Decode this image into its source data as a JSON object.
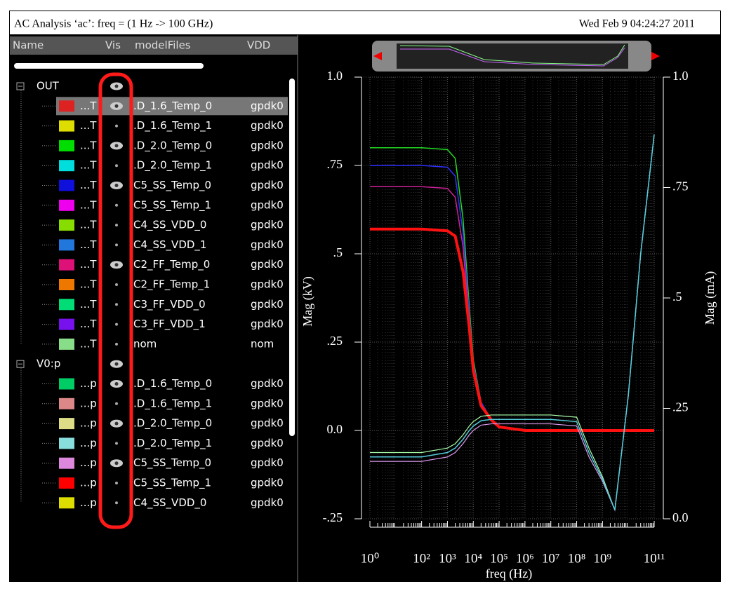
{
  "header": {
    "title": "AC Analysis ‘ac’: freq = (1 Hz -> 100 GHz)",
    "date": "Wed Feb 9 04:24:27 2011"
  },
  "columns": [
    "Name",
    "Vis",
    "modelFiles",
    "VDD"
  ],
  "tree": [
    {
      "label": "OUT",
      "visible": true,
      "rows": [
        {
          "name": "...T",
          "color": "#dd2222",
          "visible": true,
          "model": ".D_1.6_Temp_0",
          "vdd": "gpdk0",
          "selected": true
        },
        {
          "name": "...T",
          "color": "#dddd00",
          "visible": false,
          "model": ".D_1.6_Temp_1",
          "vdd": "gpdk0"
        },
        {
          "name": "...T",
          "color": "#00dd00",
          "visible": true,
          "model": ".D_2.0_Temp_0",
          "vdd": "gpdk0"
        },
        {
          "name": "...T",
          "color": "#00dddd",
          "visible": false,
          "model": ".D_2.0_Temp_1",
          "vdd": "gpdk0"
        },
        {
          "name": "...T",
          "color": "#1010dd",
          "visible": true,
          "model": "C5_SS_Temp_0",
          "vdd": "gpdk0"
        },
        {
          "name": "...T",
          "color": "#ee00ee",
          "visible": false,
          "model": "C5_SS_Temp_1",
          "vdd": "gpdk0"
        },
        {
          "name": "...T",
          "color": "#88dd00",
          "visible": false,
          "model": "C4_SS_VDD_0",
          "vdd": "gpdk0"
        },
        {
          "name": "...T",
          "color": "#2277dd",
          "visible": false,
          "model": "C4_SS_VDD_1",
          "vdd": "gpdk0"
        },
        {
          "name": "...T",
          "color": "#dd1177",
          "visible": true,
          "model": "C2_FF_Temp_0",
          "vdd": "gpdk0"
        },
        {
          "name": "...T",
          "color": "#ee7700",
          "visible": false,
          "model": "C2_FF_Temp_1",
          "vdd": "gpdk0"
        },
        {
          "name": "...T",
          "color": "#00dd77",
          "visible": false,
          "model": "C3_FF_VDD_0",
          "vdd": "gpdk0"
        },
        {
          "name": "...T",
          "color": "#7711ee",
          "visible": false,
          "model": "C3_FF_VDD_1",
          "vdd": "gpdk0"
        },
        {
          "name": "...T",
          "color": "#88dd88",
          "visible": false,
          "model": "nom",
          "vdd": "nom"
        }
      ]
    },
    {
      "label": "V0:p",
      "visible": true,
      "rows": [
        {
          "name": "...p",
          "color": "#00cc66",
          "visible": true,
          "model": ".D_1.6_Temp_0",
          "vdd": "gpdk0"
        },
        {
          "name": "...p",
          "color": "#dd8888",
          "visible": false,
          "model": ".D_1.6_Temp_1",
          "vdd": "gpdk0"
        },
        {
          "name": "...p",
          "color": "#dddd88",
          "visible": true,
          "model": ".D_2.0_Temp_0",
          "vdd": "gpdk0"
        },
        {
          "name": "...p",
          "color": "#88dddd",
          "visible": false,
          "model": ".D_2.0_Temp_1",
          "vdd": "gpdk0"
        },
        {
          "name": "...p",
          "color": "#dd88dd",
          "visible": true,
          "model": "C5_SS_Temp_0",
          "vdd": "gpdk0"
        },
        {
          "name": "...p",
          "color": "#ff0000",
          "visible": false,
          "model": "C5_SS_Temp_1",
          "vdd": "gpdk0"
        },
        {
          "name": "...p",
          "color": "#dddd00",
          "visible": false,
          "model": "C4_SS_VDD_0",
          "vdd": "gpdk0"
        }
      ]
    }
  ],
  "chart_data": {
    "type": "line",
    "xlabel": "freq (Hz)",
    "ylabel": "Mag (kV)",
    "y2label": "Mag (mA)",
    "log_x": true,
    "grid": true,
    "x": [
      1,
      10,
      100,
      1000,
      2000,
      4000,
      7000,
      10000,
      20000,
      50000,
      100000,
      1000000,
      10000000,
      100000000,
      300000000,
      1000000000,
      3000000000,
      10000000000,
      30000000000,
      100000000000
    ],
    "xlim": [
      1,
      100000000000
    ],
    "xticks": [
      {
        "value": 1,
        "label": "10⁰"
      },
      {
        "value": 100,
        "label": "10²"
      },
      {
        "value": 1000,
        "label": "10³"
      },
      {
        "value": 10000,
        "label": "10⁴"
      },
      {
        "value": 100000,
        "label": "10⁵"
      },
      {
        "value": 1000000,
        "label": "10⁶"
      },
      {
        "value": 10000000,
        "label": "10⁷"
      },
      {
        "value": 100000000,
        "label": "10⁸"
      },
      {
        "value": 1000000000,
        "label": "10⁹"
      },
      {
        "value": 100000000000,
        "label": "10¹¹"
      }
    ],
    "ylim": [
      -0.25,
      1.0
    ],
    "yticks": [
      {
        "value": -0.25,
        "label": "-.25"
      },
      {
        "value": 0,
        "label": "0.0"
      },
      {
        "value": 0.25,
        "label": ".25"
      },
      {
        "value": 0.5,
        "label": ".5"
      },
      {
        "value": 0.75,
        "label": ".75"
      },
      {
        "value": 1.0,
        "label": "1.0"
      }
    ],
    "y2lim": [
      0,
      1.0
    ],
    "y2ticks": [
      {
        "value": 0,
        "label": "0.0"
      },
      {
        "value": 0.25,
        "label": ".25"
      },
      {
        "value": 0.5,
        "label": ".5"
      },
      {
        "value": 0.75,
        "label": ".75"
      },
      {
        "value": 1.0,
        "label": "1.0"
      }
    ],
    "series": [
      {
        "color": "#22dd22",
        "width": 1.5,
        "values": [
          0.8,
          0.8,
          0.8,
          0.795,
          0.77,
          0.6,
          0.35,
          0.2,
          0.08,
          0.03,
          0.01,
          0,
          0,
          0,
          0,
          0,
          0,
          0,
          0,
          0
        ]
      },
      {
        "color": "#3030ff",
        "width": 1.5,
        "values": [
          0.75,
          0.75,
          0.75,
          0.745,
          0.72,
          0.56,
          0.33,
          0.19,
          0.08,
          0.03,
          0.01,
          0,
          0,
          0,
          0,
          0,
          0,
          0,
          0,
          0
        ]
      },
      {
        "color": "#cc2299",
        "width": 1.5,
        "values": [
          0.69,
          0.69,
          0.69,
          0.685,
          0.66,
          0.52,
          0.31,
          0.18,
          0.07,
          0.03,
          0.01,
          0,
          0,
          0,
          0,
          0,
          0,
          0,
          0,
          0
        ]
      },
      {
        "color": "#ff1111",
        "width": 4,
        "values": [
          0.57,
          0.57,
          0.57,
          0.565,
          0.55,
          0.45,
          0.29,
          0.17,
          0.07,
          0.03,
          0.01,
          0,
          0,
          0,
          0,
          0,
          0,
          0,
          0,
          0
        ]
      },
      {
        "color": "#aaffaa",
        "width": 1.2,
        "axis": "y2",
        "values": [
          0.15,
          0.15,
          0.15,
          0.16,
          0.17,
          0.19,
          0.21,
          0.22,
          0.232,
          0.235,
          0.235,
          0.235,
          0.235,
          0.23,
          0.16,
          0.095,
          0.02,
          0.28,
          0.6,
          0.87
        ]
      },
      {
        "color": "#dd99ee",
        "width": 1.2,
        "axis": "y2",
        "values": [
          0.13,
          0.13,
          0.13,
          0.14,
          0.15,
          0.17,
          0.19,
          0.2,
          0.212,
          0.215,
          0.215,
          0.215,
          0.215,
          0.21,
          0.14,
          0.085,
          0.02,
          0.28,
          0.6,
          0.87
        ]
      },
      {
        "color": "#55ccdd",
        "width": 1.5,
        "axis": "y2",
        "values": [
          0.14,
          0.14,
          0.14,
          0.15,
          0.16,
          0.18,
          0.2,
          0.21,
          0.222,
          0.225,
          0.225,
          0.225,
          0.225,
          0.22,
          0.15,
          0.09,
          0.02,
          0.28,
          0.6,
          0.87
        ]
      }
    ]
  }
}
